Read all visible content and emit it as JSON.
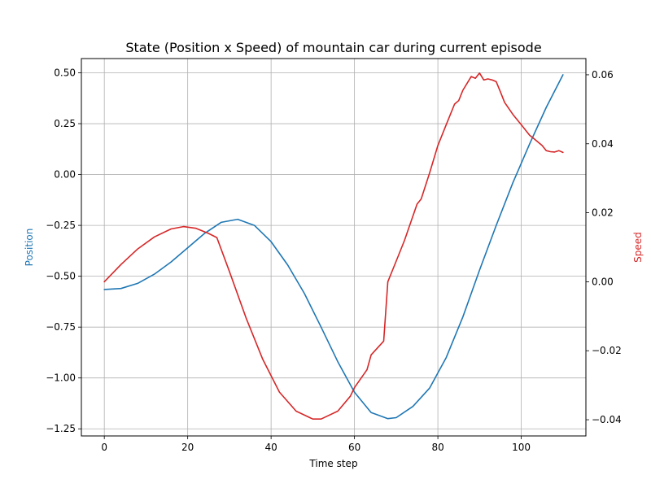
{
  "chart_data": {
    "type": "line",
    "title": "State (Position x Speed) of mountain car during current episode",
    "xlabel": "Time step",
    "ylabel_left": "Position",
    "ylabel_right": "Speed",
    "grid": true,
    "xlim": [
      -5.5,
      115.5
    ],
    "ylim_left": [
      -1.285,
      0.57
    ],
    "ylim_right": [
      -0.0447,
      0.0647
    ],
    "x_ticks": [
      0,
      20,
      40,
      60,
      80,
      100
    ],
    "x_tick_labels": [
      "0",
      "20",
      "40",
      "60",
      "80",
      "100"
    ],
    "y_left_ticks": [
      0.5,
      0.25,
      0.0,
      -0.25,
      -0.5,
      -0.75,
      -1.0,
      -1.25
    ],
    "y_left_tick_labels": [
      "0.50",
      "0.25",
      "0.00",
      "−0.25",
      "−0.50",
      "−0.75",
      "−1.00",
      "−1.25"
    ],
    "y_right_ticks": [
      0.06,
      0.04,
      0.02,
      0.0,
      -0.02,
      -0.04
    ],
    "y_right_tick_labels": [
      "0.06",
      "0.04",
      "0.02",
      "0.00",
      "−0.02",
      "−0.04"
    ],
    "series": [
      {
        "name": "Position",
        "axis": "left",
        "color": "#1f77b4",
        "x": [
          0,
          4,
          8,
          12,
          16,
          20,
          24,
          28,
          32,
          36,
          40,
          44,
          48,
          52,
          56,
          60,
          64,
          68,
          70,
          74,
          78,
          82,
          86,
          90,
          94,
          98,
          102,
          106,
          110
        ],
        "y": [
          -0.565,
          -0.56,
          -0.535,
          -0.49,
          -0.43,
          -0.36,
          -0.29,
          -0.235,
          -0.22,
          -0.25,
          -0.33,
          -0.445,
          -0.585,
          -0.75,
          -0.92,
          -1.07,
          -1.17,
          -1.2,
          -1.195,
          -1.14,
          -1.05,
          -0.9,
          -0.7,
          -0.47,
          -0.25,
          -0.04,
          0.15,
          0.33,
          0.49
        ]
      },
      {
        "name": "Speed",
        "axis": "right",
        "color": "#d62728",
        "x": [
          0,
          4,
          8,
          12,
          16,
          19,
          22,
          25,
          27,
          30,
          34,
          38,
          42,
          46,
          50,
          52,
          56,
          59,
          60,
          63,
          64,
          67,
          68,
          70,
          72,
          75,
          76,
          78,
          80,
          82,
          84,
          85,
          86,
          88,
          89,
          90,
          91,
          92,
          93,
          94,
          95,
          96,
          98,
          100,
          102,
          103,
          104,
          105,
          106,
          107,
          108,
          109,
          110
        ],
        "y": [
          0.0,
          0.005,
          0.0095,
          0.013,
          0.0153,
          0.016,
          0.0155,
          0.014,
          0.0128,
          0.003,
          -0.0105,
          -0.0225,
          -0.032,
          -0.0375,
          -0.0398,
          -0.0398,
          -0.0375,
          -0.0332,
          -0.0307,
          -0.0255,
          -0.0212,
          -0.0172,
          0.0,
          0.006,
          0.012,
          0.0225,
          0.024,
          0.0315,
          0.0395,
          0.0455,
          0.0515,
          0.0525,
          0.0555,
          0.0595,
          0.059,
          0.0605,
          0.0585,
          0.0588,
          0.0585,
          0.058,
          0.055,
          0.052,
          0.0485,
          0.0455,
          0.0425,
          0.0415,
          0.0405,
          0.0395,
          0.038,
          0.0377,
          0.0376,
          0.038,
          0.0375
        ]
      }
    ]
  }
}
